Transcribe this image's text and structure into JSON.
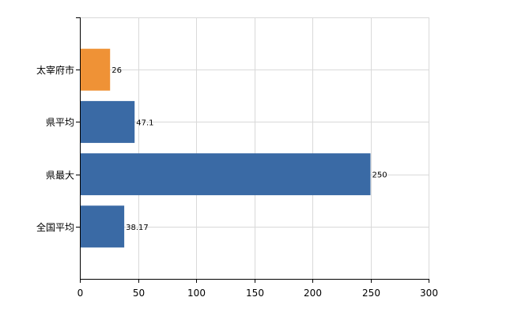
{
  "chart_data": {
    "type": "bar",
    "orientation": "horizontal",
    "categories": [
      "太宰府市",
      "県平均",
      "県最大",
      "全国平均"
    ],
    "values": [
      26,
      47.1,
      250,
      38.17
    ],
    "data_labels": [
      "26",
      "47.1",
      "250",
      "38.17"
    ],
    "bar_colors": [
      "#ef9236",
      "#3a6aa5",
      "#3a6aa5",
      "#3a6aa5"
    ],
    "xlim": [
      0,
      300
    ],
    "xticks": [
      0,
      50,
      100,
      150,
      200,
      250,
      300
    ],
    "xtick_labels": [
      "0",
      "50",
      "100",
      "150",
      "200",
      "250",
      "300"
    ],
    "grid": true,
    "title": "",
    "xlabel": "",
    "ylabel": ""
  }
}
